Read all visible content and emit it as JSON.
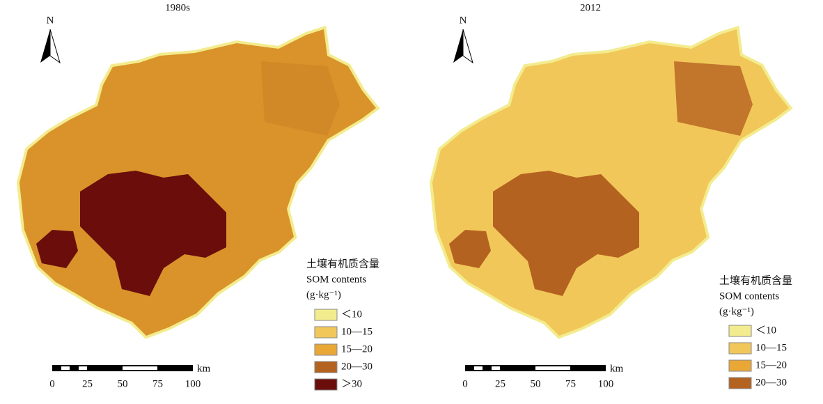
{
  "north": "N",
  "panels": [
    {
      "title": "1980s",
      "legend": {
        "title": "土壤有机质含量",
        "subtitle": "SOM contents",
        "unit": "(g·kg⁻¹)",
        "items": [
          {
            "label": "＜10",
            "color": "#f3ec8e"
          },
          {
            "label": "10—15",
            "color": "#f2c75a"
          },
          {
            "label": "15—20",
            "color": "#e9a736"
          },
          {
            "label": "20—30",
            "color": "#b4621f"
          },
          {
            "label": "＞30",
            "color": "#6a0d0b"
          }
        ]
      },
      "scale": {
        "ticks": [
          0,
          25,
          50,
          75,
          100
        ],
        "unit": "km"
      }
    },
    {
      "title": "2012",
      "legend": {
        "title": "土壤有机质含量",
        "subtitle": "SOM contents",
        "unit": "(g·kg⁻¹)",
        "items": [
          {
            "label": "＜10",
            "color": "#f3ec8e"
          },
          {
            "label": "10—15",
            "color": "#f2c75a"
          },
          {
            "label": "15—20",
            "color": "#e9a736"
          },
          {
            "label": "20—30",
            "color": "#b4621f"
          }
        ]
      },
      "scale": {
        "ticks": [
          0,
          25,
          50,
          75,
          100
        ],
        "unit": "km"
      }
    }
  ]
}
